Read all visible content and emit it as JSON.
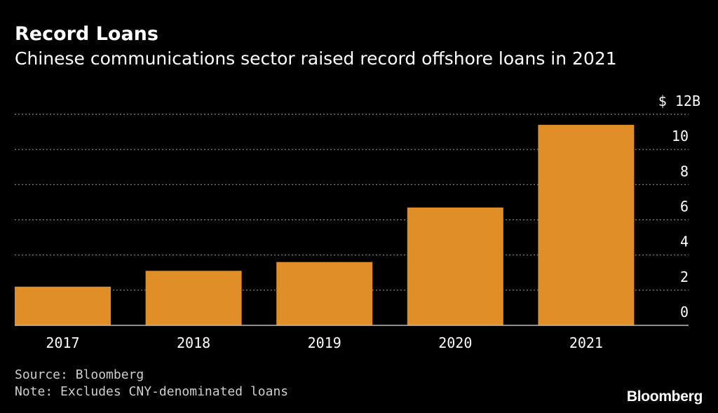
{
  "chart_data": {
    "type": "bar",
    "title": "Record Loans",
    "subtitle": "Chinese communications sector raised record offshore loans in 2021",
    "categories": [
      "2017",
      "2018",
      "2019",
      "2020",
      "2021"
    ],
    "values": [
      2.2,
      3.1,
      3.6,
      6.7,
      11.4
    ],
    "ylim": [
      0,
      12
    ],
    "yticks": [
      0,
      2,
      4,
      6,
      8,
      10
    ],
    "top_tick_label": "$ 12B",
    "xlabel": "",
    "ylabel": "",
    "grid": true,
    "bar_color": "#e08e27",
    "grid_color": "#8a8a8a",
    "axis_color": "#bdbdbd"
  },
  "footer": {
    "source": "Source: Bloomberg",
    "note": "Note: Excludes CNY-denominated loans",
    "brand": "Bloomberg"
  }
}
